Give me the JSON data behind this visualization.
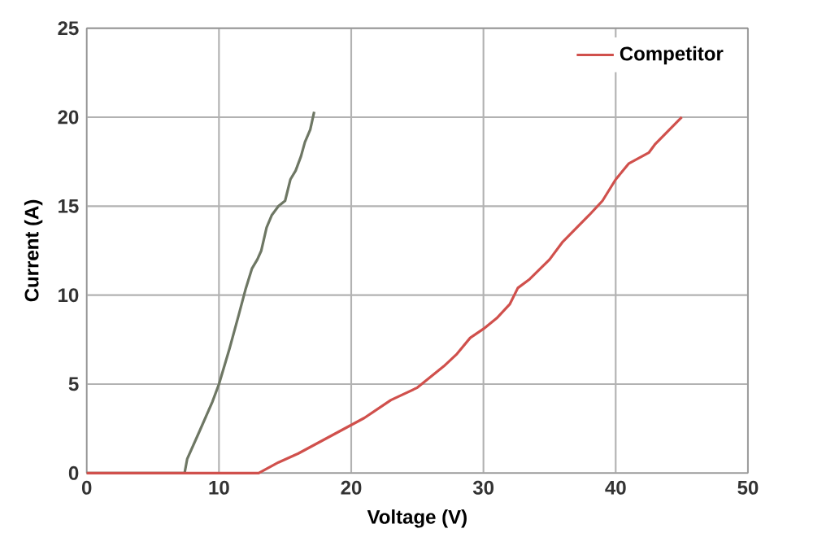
{
  "chart_data": {
    "type": "line",
    "xlabel": "Voltage (V)",
    "ylabel": "Current (A)",
    "xlim": [
      0,
      50
    ],
    "ylim": [
      0,
      25
    ],
    "xticks": [
      0,
      10,
      20,
      30,
      40,
      50
    ],
    "yticks": [
      0,
      5,
      10,
      15,
      20,
      25
    ],
    "grid": true,
    "legend": "top right",
    "series": [
      {
        "color": "#6e7764",
        "x": [
          0,
          7.4,
          7.6,
          8.5,
          9.5,
          10,
          10.8,
          11.5,
          12,
          12.5,
          12.9,
          13.2,
          13.6,
          14,
          14.5,
          15,
          15.4,
          15.8,
          16.2,
          16.5,
          16.9,
          17.2
        ],
        "values": [
          0,
          0,
          0.8,
          2.3,
          4,
          5,
          7,
          8.9,
          10.3,
          11.5,
          12,
          12.5,
          13.8,
          14.5,
          15,
          15.3,
          16.5,
          17,
          17.8,
          18.6,
          19.3,
          20.3
        ]
      },
      {
        "name": "Competitor",
        "color": "#d0504c",
        "x": [
          0,
          13,
          14.5,
          16,
          18,
          20,
          21,
          23,
          25,
          27,
          28,
          29,
          30,
          31,
          32,
          32.6,
          33.5,
          35,
          36,
          38,
          39,
          40,
          41,
          42.5,
          43,
          45
        ],
        "values": [
          0,
          0,
          0.6,
          1.1,
          1.9,
          2.7,
          3.1,
          4.1,
          4.8,
          6,
          6.7,
          7.6,
          8.1,
          8.7,
          9.5,
          10.4,
          10.9,
          12,
          13,
          14.5,
          15.3,
          16.5,
          17.4,
          18,
          18.5,
          20
        ]
      }
    ]
  }
}
